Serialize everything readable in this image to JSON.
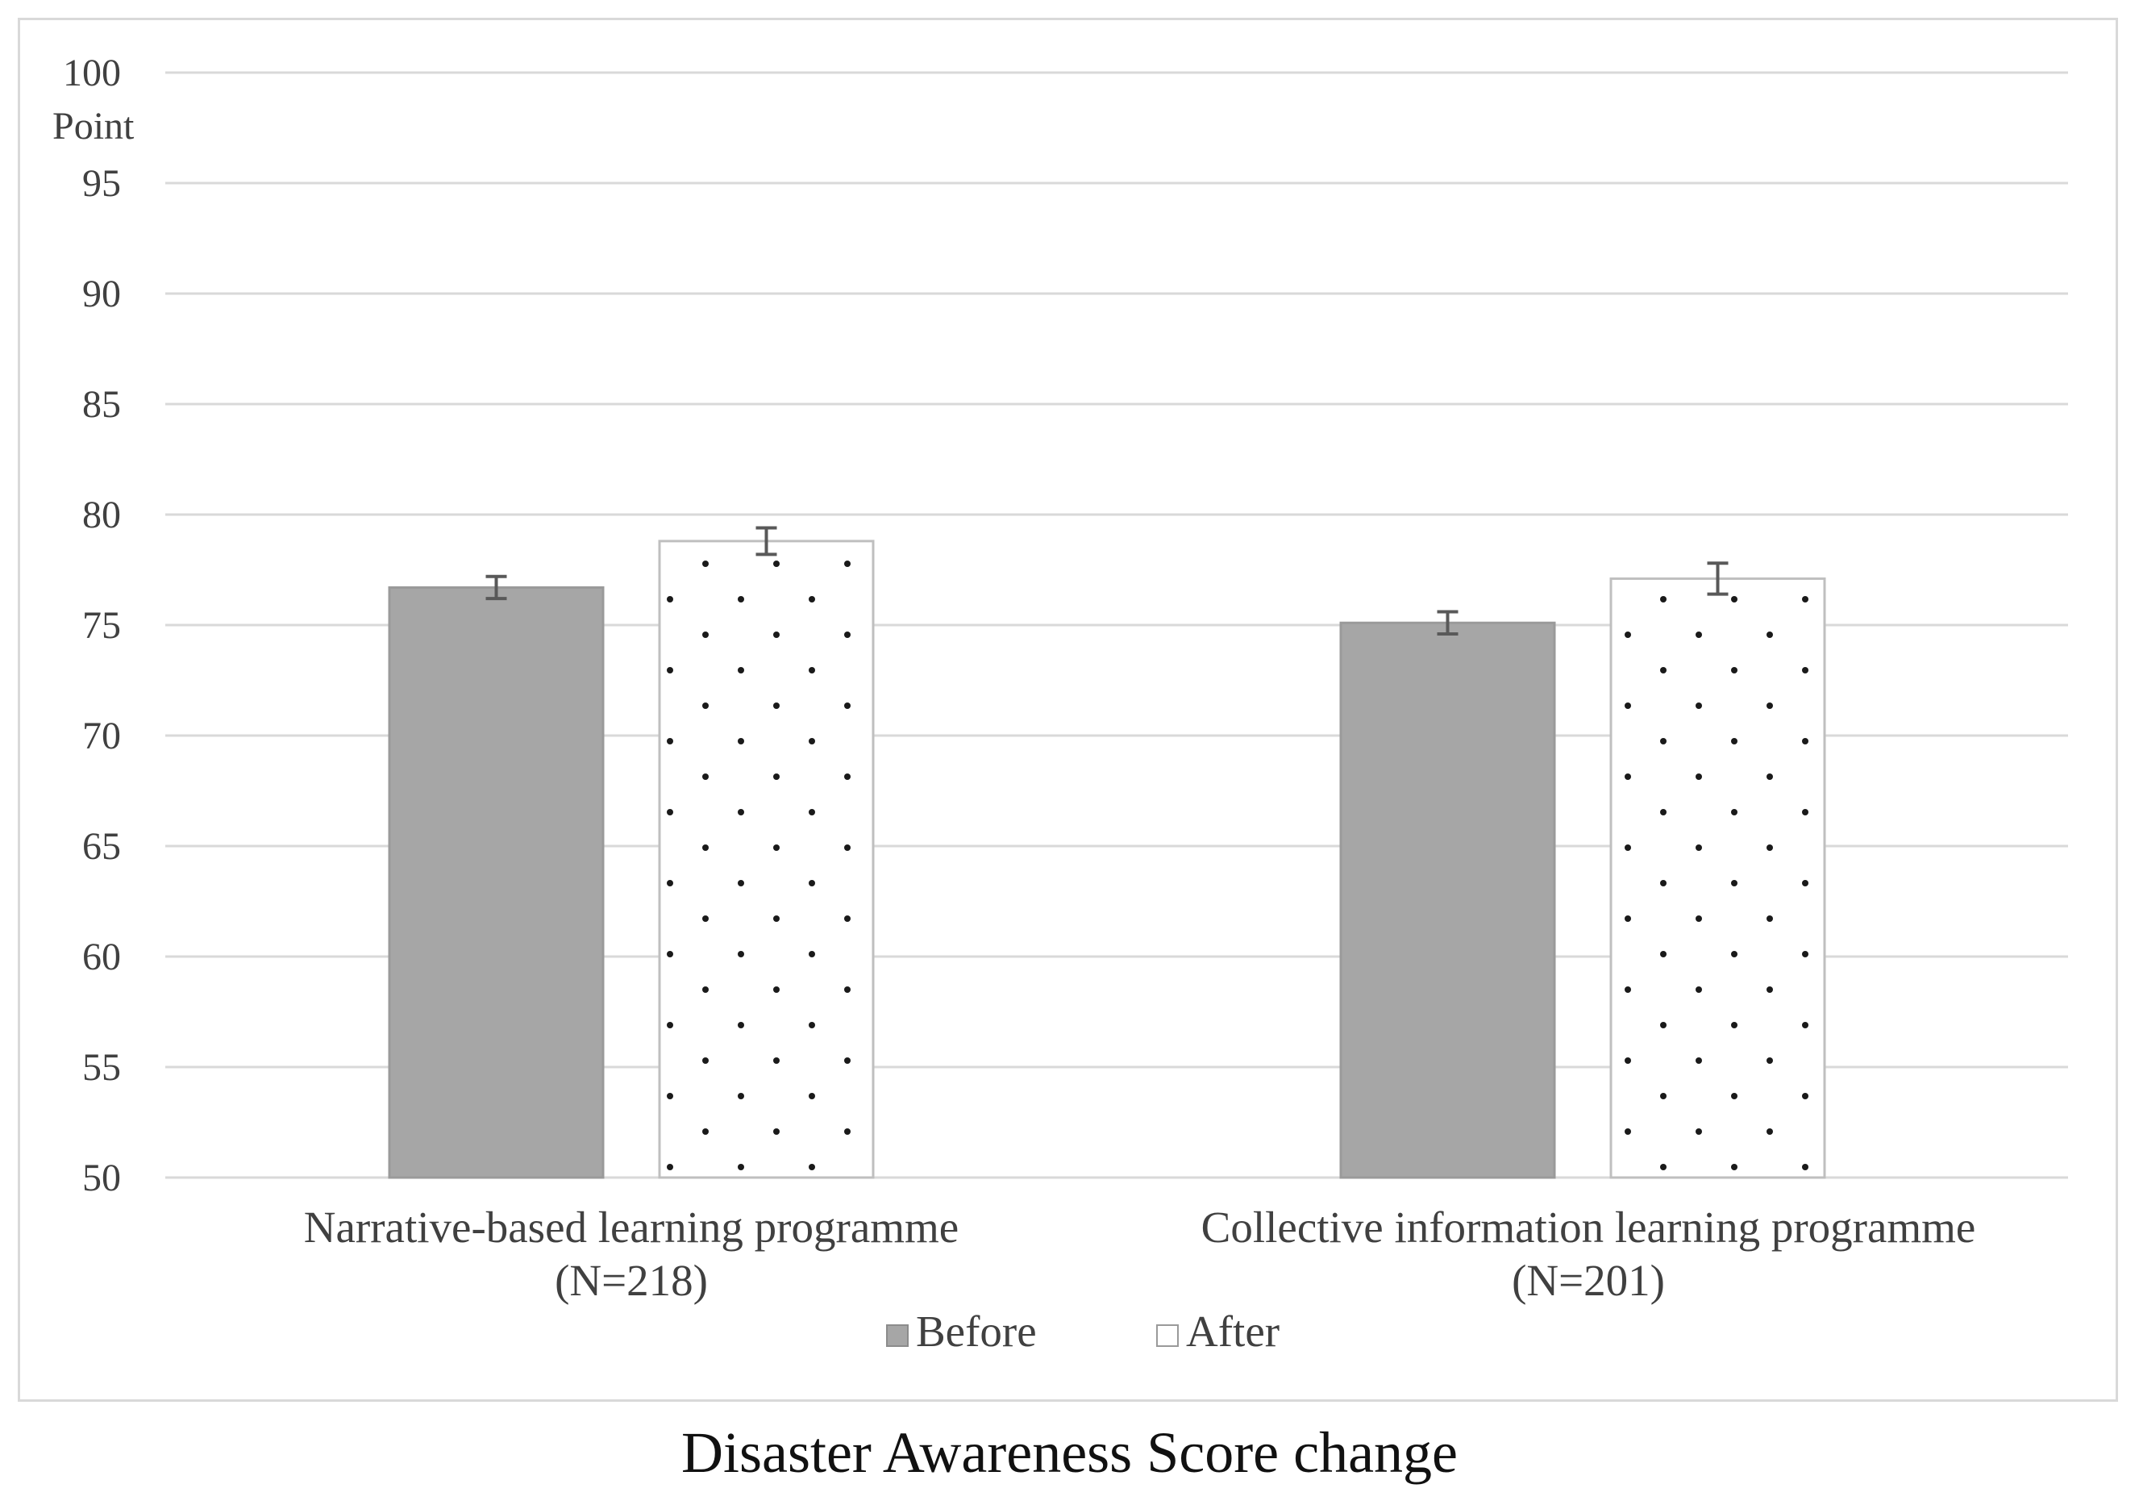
{
  "chart_data": {
    "type": "bar",
    "title": "Disaster Awareness Score change",
    "ylabel": "Point",
    "ylim": [
      50,
      100
    ],
    "yticks": [
      50,
      55,
      60,
      65,
      70,
      75,
      80,
      85,
      90,
      95,
      100
    ],
    "grid": true,
    "categories": [
      [
        "Narrative-based learning programme",
        "(N=218)"
      ],
      [
        "Collective information learning programme",
        "(N=201)"
      ]
    ],
    "series": [
      {
        "name": "Before",
        "values": [
          76.7,
          75.1
        ],
        "errors": [
          0.5,
          0.5
        ],
        "color": "#a6a6a6",
        "pattern": "solid"
      },
      {
        "name": "After",
        "values": [
          78.8,
          77.1
        ],
        "errors": [
          0.6,
          0.7
        ],
        "color": "#ffffff",
        "pattern": "dots"
      }
    ],
    "legend": {
      "position": "bottom",
      "labels": [
        "Before",
        "After"
      ]
    }
  }
}
